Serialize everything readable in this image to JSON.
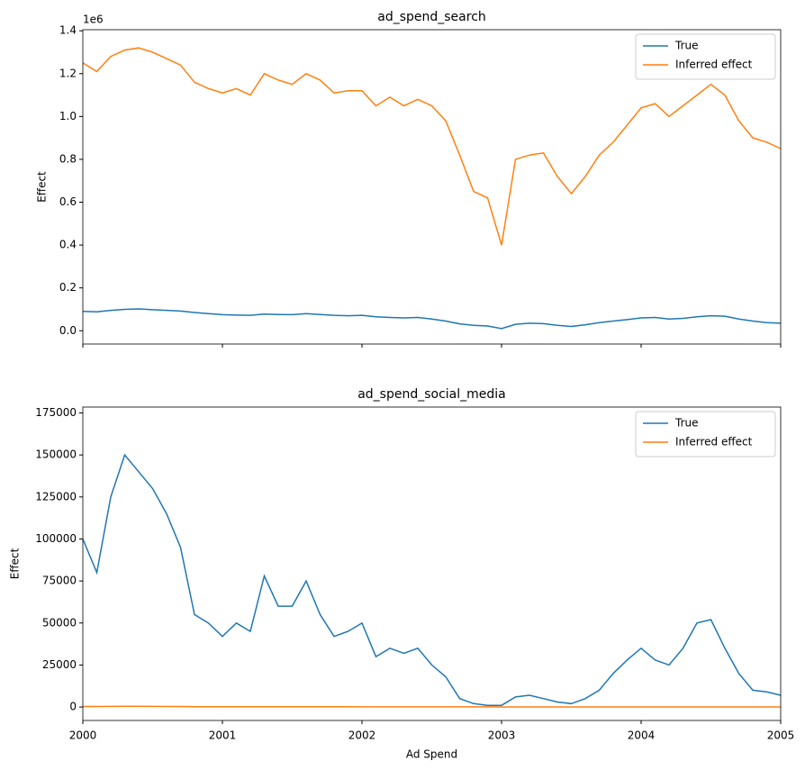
{
  "chart_data": [
    {
      "type": "line",
      "title": "ad_spend_search",
      "ylabel": "Effect",
      "y_offset_label": "1e6",
      "x": [
        2000,
        2000.1,
        2000.2,
        2000.3,
        2000.4,
        2000.5,
        2000.6,
        2000.7,
        2000.8,
        2000.9,
        2001,
        2001.1,
        2001.2,
        2001.3,
        2001.4,
        2001.5,
        2001.6,
        2001.7,
        2001.8,
        2001.9,
        2002,
        2002.1,
        2002.2,
        2002.3,
        2002.4,
        2002.5,
        2002.6,
        2002.7,
        2002.8,
        2002.9,
        2003,
        2003.1,
        2003.2,
        2003.3,
        2003.4,
        2003.5,
        2003.6,
        2003.7,
        2003.8,
        2003.9,
        2004,
        2004.1,
        2004.2,
        2004.3,
        2004.4,
        2004.5,
        2004.6,
        2004.7,
        2004.8,
        2004.9,
        2005
      ],
      "series": [
        {
          "name": "True",
          "color": "#1f77b4",
          "values": [
            90000,
            88000,
            95000,
            100000,
            102000,
            98000,
            95000,
            92000,
            85000,
            80000,
            75000,
            73000,
            72000,
            78000,
            76000,
            75000,
            80000,
            76000,
            72000,
            70000,
            72000,
            65000,
            62000,
            60000,
            62000,
            55000,
            45000,
            32000,
            25000,
            22000,
            10000,
            30000,
            35000,
            33000,
            25000,
            20000,
            28000,
            38000,
            45000,
            52000,
            60000,
            62000,
            55000,
            58000,
            65000,
            70000,
            68000,
            55000,
            45000,
            38000,
            35000
          ]
        },
        {
          "name": "Inferred effect",
          "color": "#ff7f0e",
          "values": [
            1250000,
            1210000,
            1280000,
            1310000,
            1320000,
            1300000,
            1270000,
            1240000,
            1160000,
            1130000,
            1110000,
            1130000,
            1100000,
            1200000,
            1170000,
            1150000,
            1200000,
            1170000,
            1110000,
            1120000,
            1120000,
            1050000,
            1090000,
            1050000,
            1080000,
            1050000,
            980000,
            820000,
            650000,
            620000,
            400000,
            800000,
            820000,
            830000,
            720000,
            640000,
            720000,
            820000,
            880000,
            960000,
            1040000,
            1060000,
            1000000,
            1050000,
            1100000,
            1150000,
            1100000,
            980000,
            900000,
            880000,
            850000
          ]
        }
      ],
      "xlim": [
        2000,
        2005
      ],
      "xticks": [
        2000,
        2001,
        2002,
        2003,
        2004,
        2005
      ],
      "show_xtick_labels": false,
      "ylim": [
        -62000,
        1405000
      ],
      "yticks": [
        {
          "value": 0,
          "label": "0.0"
        },
        {
          "value": 200000,
          "label": "0.2"
        },
        {
          "value": 400000,
          "label": "0.4"
        },
        {
          "value": 600000,
          "label": "0.6"
        },
        {
          "value": 800000,
          "label": "0.8"
        },
        {
          "value": 1000000,
          "label": "1.0"
        },
        {
          "value": 1200000,
          "label": "1.2"
        },
        {
          "value": 1400000,
          "label": "1.4"
        }
      ],
      "legend": "upper right"
    },
    {
      "type": "line",
      "title": "ad_spend_social_media",
      "ylabel": "Effect",
      "xlabel": "Ad Spend",
      "x": [
        2000,
        2000.1,
        2000.2,
        2000.3,
        2000.4,
        2000.5,
        2000.6,
        2000.7,
        2000.8,
        2000.9,
        2001,
        2001.1,
        2001.2,
        2001.3,
        2001.4,
        2001.5,
        2001.6,
        2001.7,
        2001.8,
        2001.9,
        2002,
        2002.1,
        2002.2,
        2002.3,
        2002.4,
        2002.5,
        2002.6,
        2002.7,
        2002.8,
        2002.9,
        2003,
        2003.1,
        2003.2,
        2003.3,
        2003.4,
        2003.5,
        2003.6,
        2003.7,
        2003.8,
        2003.9,
        2004,
        2004.1,
        2004.2,
        2004.3,
        2004.4,
        2004.5,
        2004.6,
        2004.7,
        2004.8,
        2004.9,
        2005
      ],
      "series": [
        {
          "name": "True",
          "color": "#1f77b4",
          "values": [
            100000,
            80000,
            125000,
            150000,
            140000,
            130000,
            115000,
            95000,
            55000,
            50000,
            42000,
            50000,
            45000,
            78000,
            60000,
            60000,
            75000,
            55000,
            42000,
            45000,
            50000,
            30000,
            35000,
            32000,
            35000,
            25000,
            18000,
            5000,
            2000,
            1000,
            1000,
            6000,
            7000,
            5000,
            3000,
            2000,
            5000,
            10000,
            20000,
            28000,
            35000,
            28000,
            25000,
            35000,
            50000,
            52000,
            35000,
            20000,
            10000,
            9000,
            7000
          ]
        },
        {
          "name": "Inferred effect",
          "color": "#ff7f0e",
          "values": [
            300,
            300,
            350,
            400,
            400,
            350,
            300,
            300,
            200,
            200,
            150,
            150,
            150,
            150,
            150,
            150,
            150,
            150,
            150,
            150,
            100,
            100,
            100,
            100,
            100,
            100,
            100,
            100,
            100,
            100,
            50,
            50,
            50,
            50,
            50,
            50,
            50,
            50,
            50,
            50,
            50,
            50,
            50,
            50,
            50,
            50,
            50,
            50,
            50,
            50,
            50
          ]
        }
      ],
      "xlim": [
        2000,
        2005
      ],
      "xticks": [
        2000,
        2001,
        2002,
        2003,
        2004,
        2005
      ],
      "show_xtick_labels": true,
      "ylim": [
        -8000,
        178500
      ],
      "yticks": [
        0,
        25000,
        50000,
        75000,
        100000,
        125000,
        150000,
        175000
      ],
      "legend": "upper right"
    }
  ]
}
